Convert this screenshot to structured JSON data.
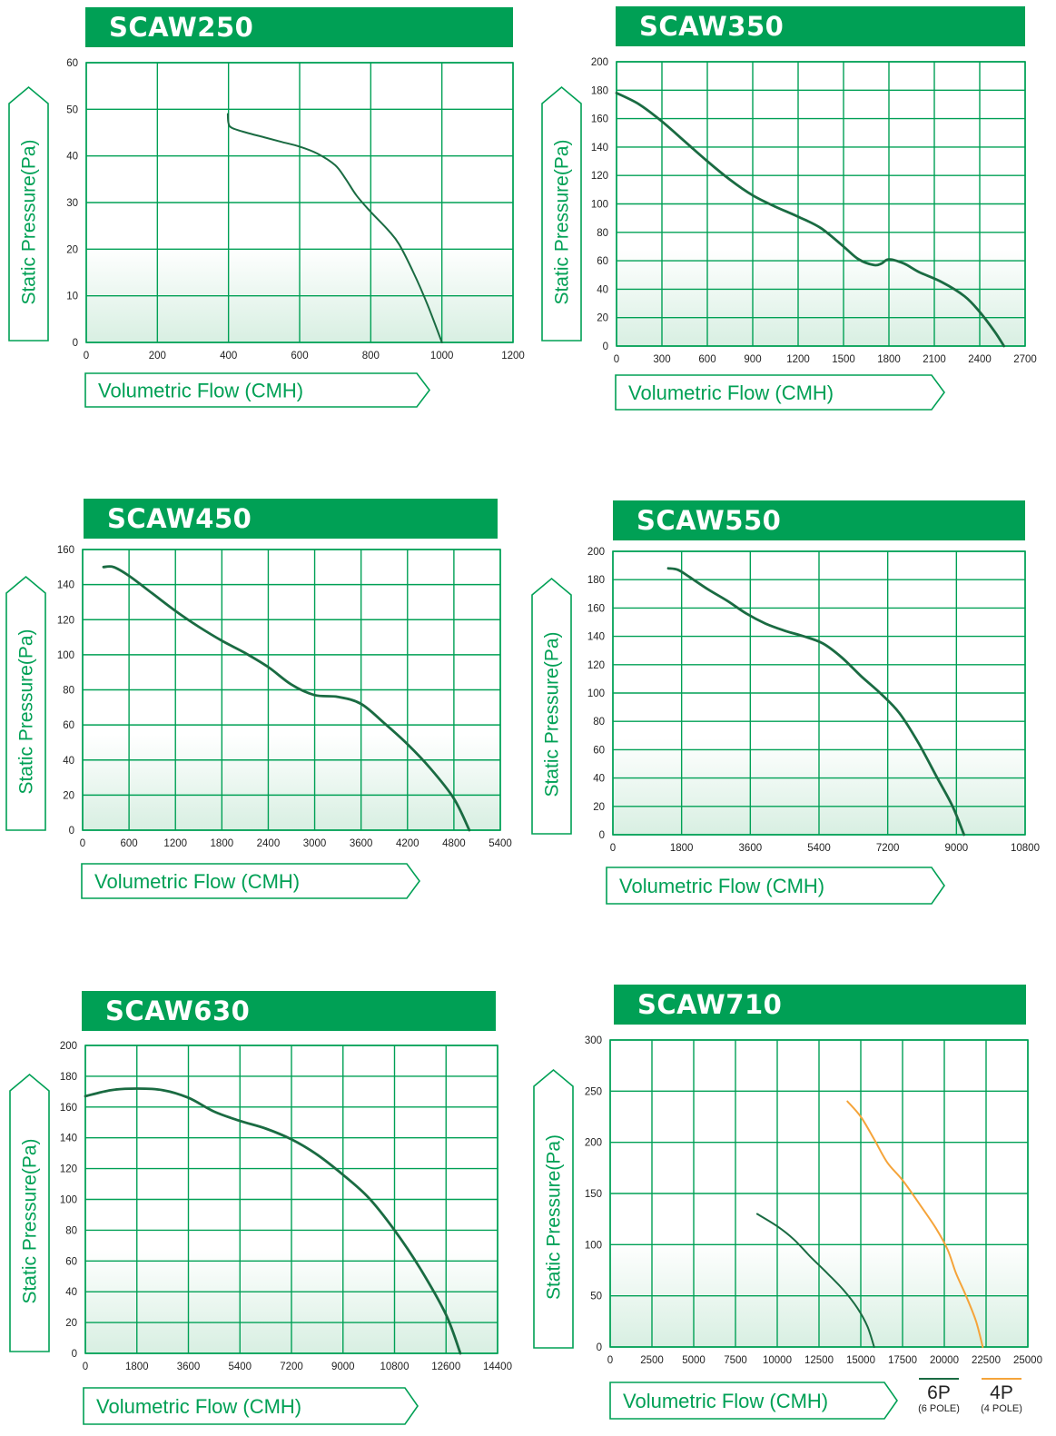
{
  "colors": {
    "brand_green": "#00a055",
    "grid": "#00a055",
    "curve_dark": "#1a6b42",
    "curve_orange": "#f5a43a"
  },
  "chart_data": [
    {
      "type": "line",
      "title": "SCAW250",
      "xlabel": "Volumetric Flow (CMH)",
      "ylabel": "Static Pressure(Pa)",
      "xlim": [
        0,
        1200
      ],
      "ylim": [
        0,
        60
      ],
      "xticks": [
        0,
        200,
        400,
        600,
        800,
        1000,
        1200
      ],
      "yticks": [
        0,
        10,
        20,
        30,
        40,
        50,
        60
      ],
      "grid": true,
      "series": [
        {
          "color": "#1a6b42",
          "x": [
            398,
            400,
            410,
            450,
            500,
            550,
            600,
            650,
            700,
            730,
            760,
            800,
            850,
            880,
            920,
            960,
            1000
          ],
          "y": [
            49,
            47,
            46,
            45,
            44,
            43,
            42,
            40.5,
            38,
            35,
            31.5,
            28,
            24,
            21,
            15,
            8,
            0
          ]
        }
      ]
    },
    {
      "type": "line",
      "title": "SCAW350",
      "xlabel": "Volumetric Flow (CMH)",
      "ylabel": "Static Pressure(Pa)",
      "xlim": [
        0,
        2700
      ],
      "ylim": [
        0,
        200
      ],
      "xticks": [
        0,
        300,
        600,
        900,
        1200,
        1500,
        1800,
        2100,
        2400,
        2700
      ],
      "yticks": [
        0,
        20,
        40,
        60,
        80,
        100,
        120,
        140,
        160,
        180,
        200
      ],
      "grid": true,
      "series": [
        {
          "color": "#1a6b42",
          "x": [
            0,
            150,
            300,
            450,
            600,
            750,
            900,
            1050,
            1200,
            1350,
            1500,
            1600,
            1700,
            1750,
            1800,
            1900,
            2000,
            2150,
            2300,
            2400,
            2500,
            2560
          ],
          "y": [
            178,
            170,
            158,
            144,
            130,
            117,
            106,
            98,
            91,
            83,
            70,
            61,
            57,
            58,
            61,
            58,
            52,
            45,
            35,
            24,
            10,
            0
          ]
        }
      ]
    },
    {
      "type": "line",
      "title": "SCAW450",
      "xlabel": "Volumetric Flow (CMH)",
      "ylabel": "Static Pressure(Pa)",
      "xlim": [
        0,
        5400
      ],
      "ylim": [
        0,
        160
      ],
      "xticks": [
        0,
        600,
        1200,
        1800,
        2400,
        3000,
        3600,
        4200,
        4800,
        5400
      ],
      "yticks": [
        0,
        20,
        40,
        60,
        80,
        100,
        120,
        140,
        160
      ],
      "grid": true,
      "series": [
        {
          "color": "#1a6b42",
          "x": [
            270,
            400,
            600,
            900,
            1200,
            1500,
            1800,
            2100,
            2400,
            2700,
            3000,
            3300,
            3600,
            3900,
            4200,
            4500,
            4800,
            5000
          ],
          "y": [
            150,
            150,
            145,
            135,
            125,
            116,
            108,
            101,
            93,
            83,
            77,
            76,
            72,
            61,
            49,
            35,
            18,
            0
          ]
        }
      ]
    },
    {
      "type": "line",
      "title": "SCAW550",
      "xlabel": "Volumetric Flow (CMH)",
      "ylabel": "Static Pressure(Pa)",
      "xlim": [
        0,
        10800
      ],
      "ylim": [
        0,
        200
      ],
      "xticks": [
        0,
        1800,
        3600,
        5400,
        7200,
        9000,
        10800
      ],
      "yticks": [
        0,
        20,
        40,
        60,
        80,
        100,
        120,
        140,
        160,
        180,
        200
      ],
      "grid": true,
      "series": [
        {
          "color": "#1a6b42",
          "x": [
            1450,
            1700,
            2000,
            2500,
            3000,
            3500,
            4000,
            4500,
            5000,
            5500,
            6000,
            6500,
            7000,
            7500,
            8000,
            8500,
            8900,
            9200
          ],
          "y": [
            188,
            187,
            182,
            173,
            165,
            156,
            149,
            144,
            140,
            135,
            125,
            112,
            100,
            86,
            65,
            40,
            20,
            0
          ]
        }
      ]
    },
    {
      "type": "line",
      "title": "SCAW630",
      "xlabel": "Volumetric Flow (CMH)",
      "ylabel": "Static Pressure(Pa)",
      "xlim": [
        0,
        14400
      ],
      "ylim": [
        0,
        200
      ],
      "xticks": [
        0,
        1800,
        3600,
        5400,
        7200,
        9000,
        10800,
        12600,
        14400
      ],
      "yticks": [
        0,
        20,
        40,
        60,
        80,
        100,
        120,
        140,
        160,
        180,
        200
      ],
      "grid": true,
      "series": [
        {
          "color": "#1a6b42",
          "x": [
            0,
            900,
            1800,
            2700,
            3600,
            4500,
            5400,
            6300,
            7200,
            8100,
            9000,
            9900,
            10800,
            11700,
            12600,
            13100
          ],
          "y": [
            167,
            171,
            172,
            171,
            166,
            157,
            151,
            146,
            139,
            129,
            116,
            101,
            80,
            55,
            25,
            0
          ]
        }
      ]
    },
    {
      "type": "line",
      "title": "SCAW710",
      "xlabel": "Volumetric Flow (CMH)",
      "ylabel": "Static Pressure(Pa)",
      "xlim": [
        0,
        25000
      ],
      "ylim": [
        0,
        300
      ],
      "xticks": [
        0,
        2500,
        5000,
        7500,
        10000,
        12500,
        15000,
        17500,
        20000,
        22500,
        25000
      ],
      "yticks": [
        0,
        50,
        100,
        150,
        200,
        250,
        300
      ],
      "grid": true,
      "legend": [
        {
          "label": "6P",
          "sub": "(6 POLE)",
          "color": "#1a6b42"
        },
        {
          "label": "4P",
          "sub": "(4 POLE)",
          "color": "#f5a43a"
        }
      ],
      "series": [
        {
          "color": "#1a6b42",
          "x": [
            8800,
            10000,
            11000,
            12000,
            13000,
            14000,
            14800,
            15400,
            15800
          ],
          "y": [
            130,
            118,
            105,
            88,
            72,
            55,
            38,
            20,
            0
          ]
        },
        {
          "color": "#f5a43a",
          "x": [
            14200,
            15000,
            15800,
            16600,
            17500,
            18500,
            19500,
            20200,
            20700,
            21300,
            21900,
            22300
          ],
          "y": [
            240,
            225,
            203,
            180,
            163,
            140,
            116,
            95,
            72,
            50,
            25,
            0
          ]
        }
      ]
    }
  ]
}
